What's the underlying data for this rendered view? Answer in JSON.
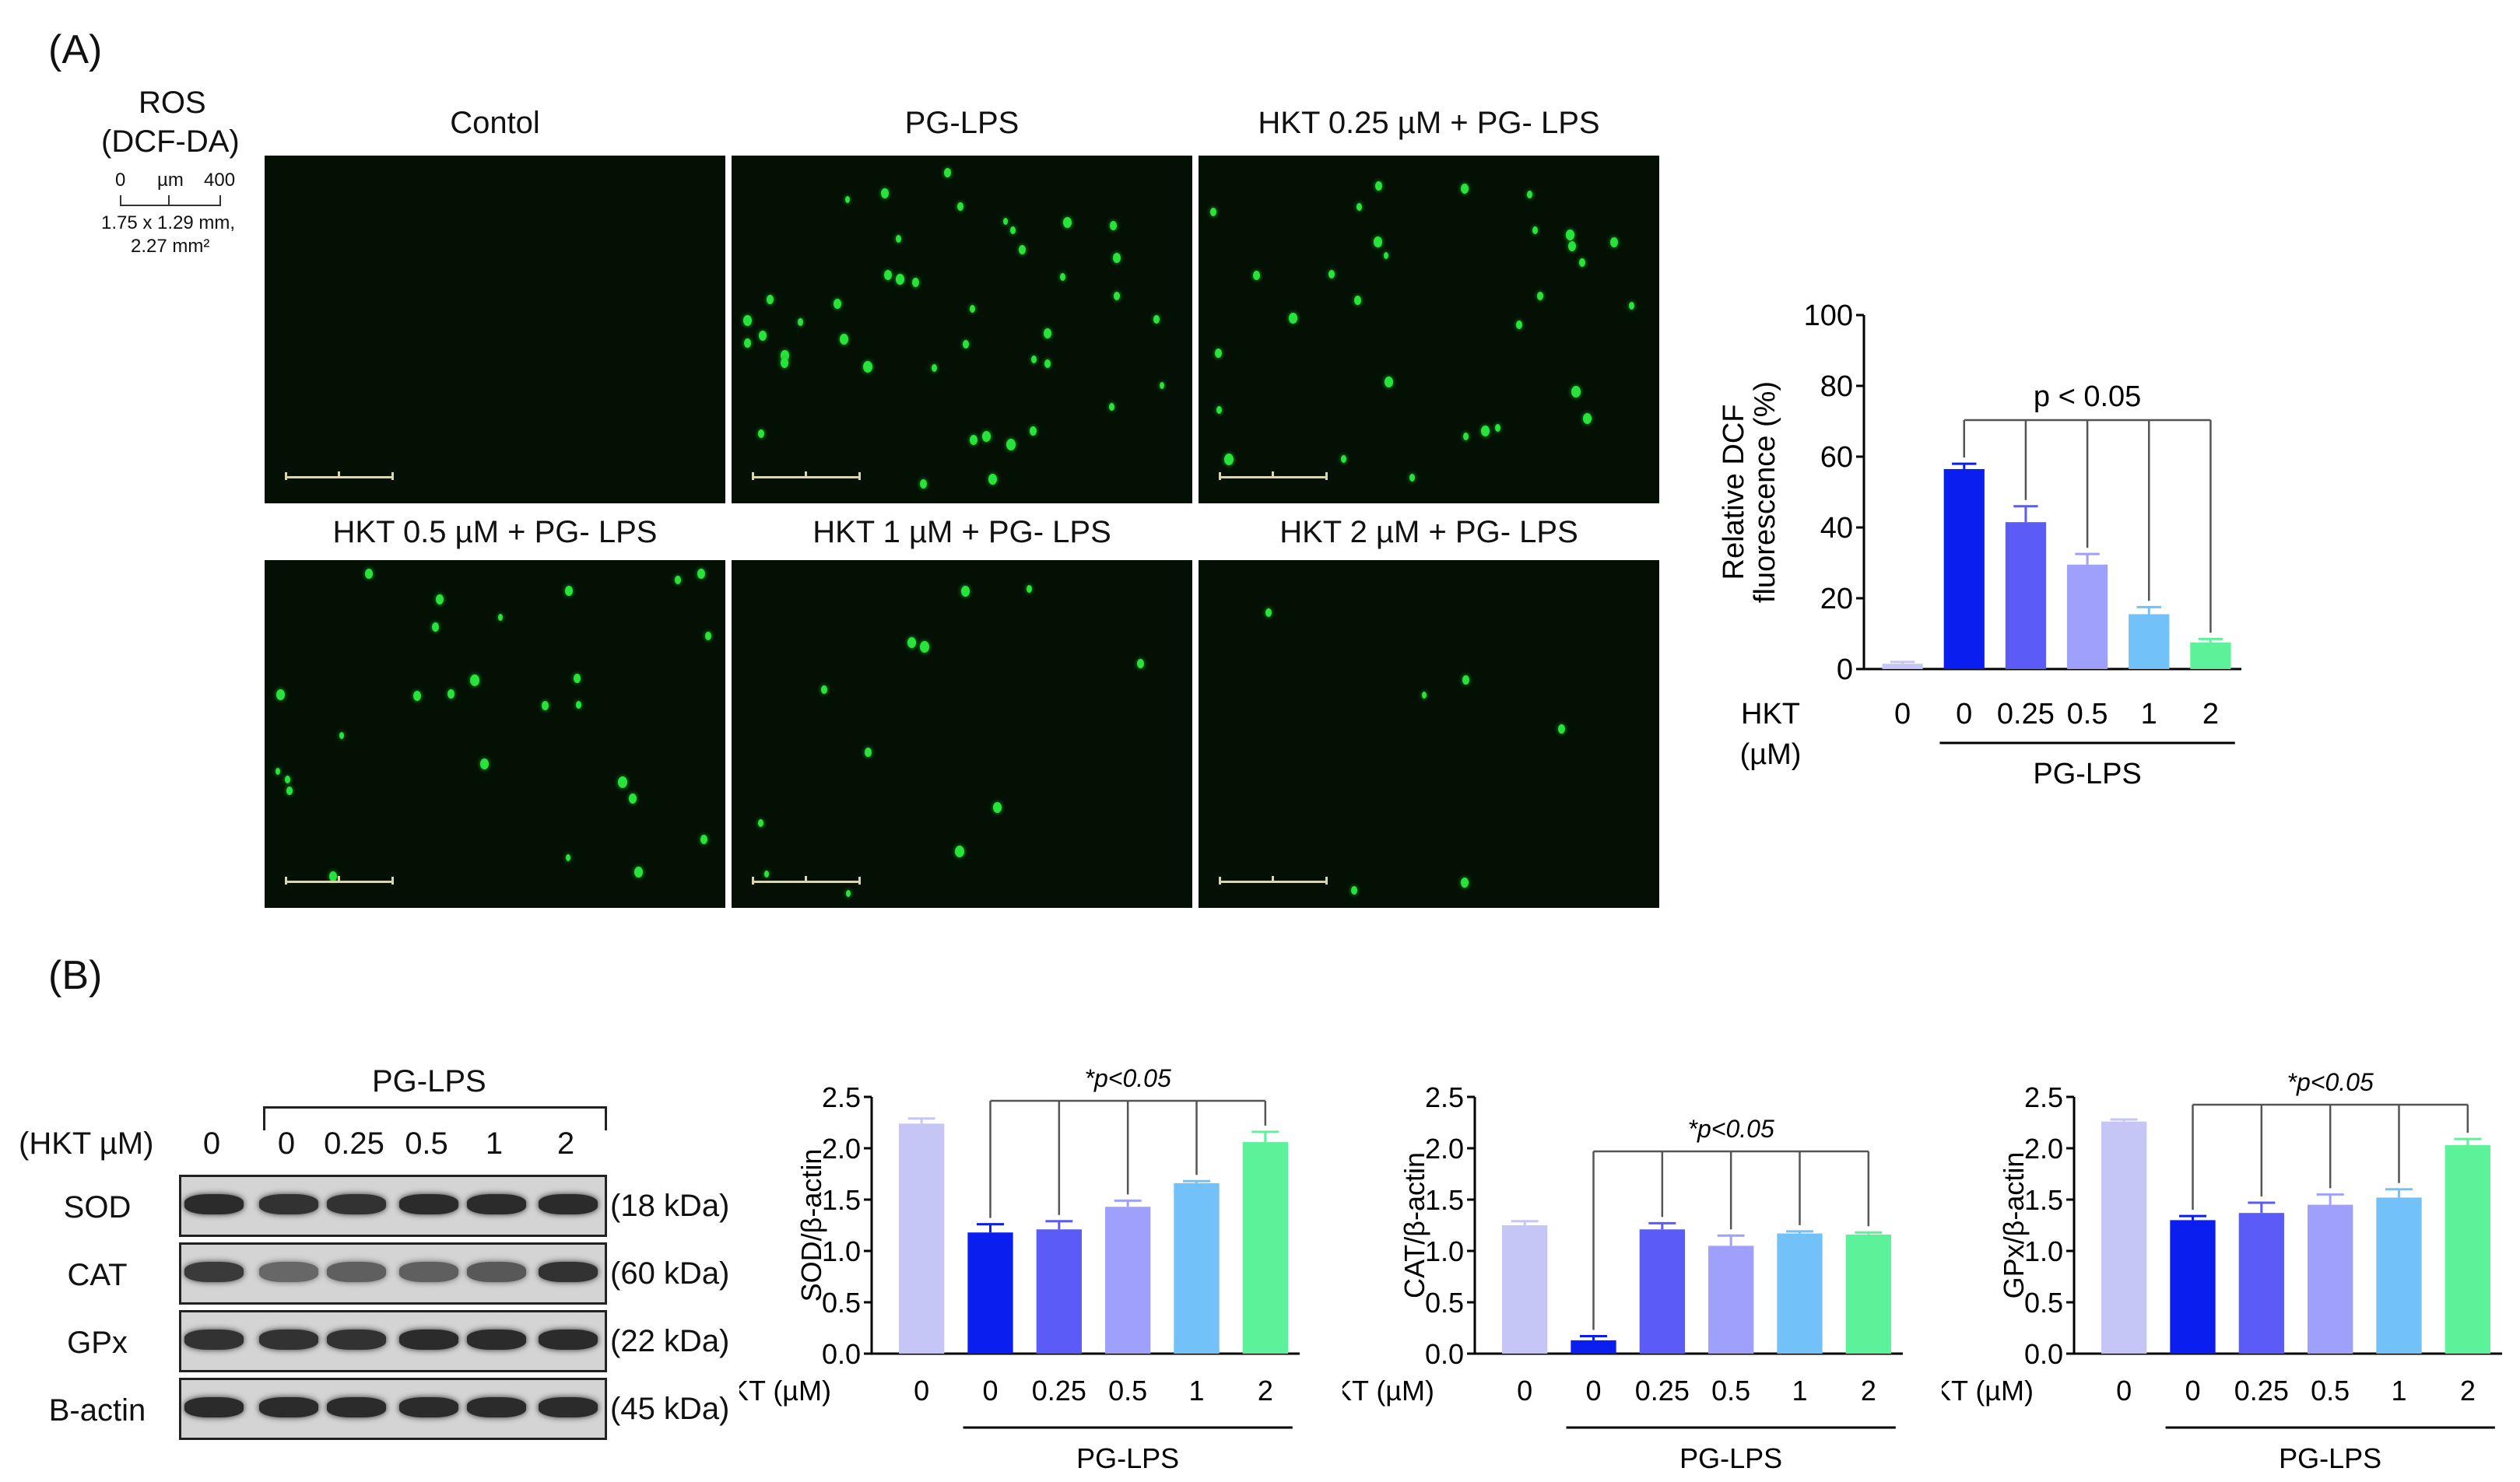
{
  "panelA": {
    "letter": "(A)",
    "ros_label": "ROS",
    "dye_label": "(DCF-DA)",
    "scale": {
      "zero": "0",
      "unit": "µm",
      "max": "400",
      "dims": "1.75 x 1.29 mm,",
      "area": "2.27 mm²"
    },
    "images": [
      {
        "caption": "Contol",
        "cells": 0
      },
      {
        "caption": "PG-LPS",
        "cells": 42
      },
      {
        "caption": "HKT 0.25 µM + PG- LPS",
        "cells": 30
      },
      {
        "caption": "HKT 0.5 µM + PG- LPS",
        "cells": 26
      },
      {
        "caption": "HKT 1 µM + PG- LPS",
        "cells": 12
      },
      {
        "caption": "HKT 2 µM + PG- LPS",
        "cells": 6
      }
    ]
  },
  "panelB": {
    "letter": "(B)",
    "blot": {
      "group_label": "PG-LPS",
      "hkt_label": "(HKT µM)",
      "lanes": [
        "0",
        "0",
        "0.25",
        "0.5",
        "1",
        "2"
      ],
      "rows": [
        {
          "name": "SOD",
          "size": "(18 kDa)",
          "intensity": [
            0.85,
            0.8,
            0.8,
            0.85,
            0.85,
            0.85
          ]
        },
        {
          "name": "CAT",
          "size": "(60 kDa)",
          "intensity": [
            0.75,
            0.45,
            0.5,
            0.5,
            0.55,
            0.8
          ]
        },
        {
          "name": "GPx",
          "size": "(22 kDa)",
          "intensity": [
            0.8,
            0.8,
            0.8,
            0.85,
            0.85,
            0.85
          ]
        },
        {
          "name": "B-actin",
          "size": "(45 kDa)",
          "intensity": [
            0.85,
            0.85,
            0.85,
            0.85,
            0.85,
            0.85
          ]
        }
      ]
    }
  },
  "chart_data": [
    {
      "type": "bar",
      "xprefix": "HKT",
      "xprefix2": "(µM)",
      "categories": [
        "0",
        "0",
        "0.25",
        "0.5",
        "1",
        "2"
      ],
      "values": [
        1.5,
        56.5,
        41.5,
        29.5,
        15.5,
        7.5
      ],
      "errors": [
        0.5,
        1.5,
        4.5,
        3.0,
        2.0,
        1.0
      ],
      "ylabel_line1": "Relative DCF",
      "ylabel_line2": "fluorescence (%)",
      "ylim": [
        0,
        100
      ],
      "yticks": [
        "0",
        "20",
        "40",
        "60",
        "80",
        "100"
      ],
      "group_label": "PG-LPS",
      "annotation": "p < 0.05",
      "colors": [
        "#c6c6f6",
        "#0b1ef0",
        "#5b5bf7",
        "#9ea0fb",
        "#72c1f8",
        "#5cf29a"
      ]
    },
    {
      "type": "bar",
      "xprefix": "HKT (µM)",
      "categories": [
        "0",
        "0",
        "0.25",
        "0.5",
        "1",
        "2"
      ],
      "values": [
        2.24,
        1.18,
        1.21,
        1.43,
        1.66,
        2.06
      ],
      "errors": [
        0.05,
        0.08,
        0.08,
        0.06,
        0.02,
        0.1
      ],
      "ylabel": "SOD/β-actin",
      "ylim": [
        0,
        2.5
      ],
      "yticks": [
        "0.0",
        "0.5",
        "1.0",
        "1.5",
        "2.0",
        "2.5"
      ],
      "group_label": "PG-LPS",
      "annotation": "*p<0.05",
      "colors": [
        "#c6c6f6",
        "#0b1ef0",
        "#5b5bf7",
        "#9ea0fb",
        "#72c1f8",
        "#5cf29a"
      ]
    },
    {
      "type": "bar",
      "xprefix": "HKT (µM)",
      "categories": [
        "0",
        "0",
        "0.25",
        "0.5",
        "1",
        "2"
      ],
      "values": [
        1.25,
        0.13,
        1.21,
        1.05,
        1.17,
        1.16
      ],
      "errors": [
        0.04,
        0.04,
        0.06,
        0.1,
        0.02,
        0.02
      ],
      "ylabel": "CAT/β-actin",
      "ylim": [
        0,
        2.5
      ],
      "yticks": [
        "0.0",
        "0.5",
        "1.0",
        "1.5",
        "2.0",
        "2.5"
      ],
      "group_label": "PG-LPS",
      "annotation": "*p<0.05",
      "colors": [
        "#c6c6f6",
        "#0b1ef0",
        "#5b5bf7",
        "#9ea0fb",
        "#72c1f8",
        "#5cf29a"
      ]
    },
    {
      "type": "bar",
      "xprefix": "HKT (µM)",
      "categories": [
        "0",
        "0",
        "0.25",
        "0.5",
        "1",
        "2"
      ],
      "values": [
        2.26,
        1.3,
        1.37,
        1.45,
        1.52,
        2.03
      ],
      "errors": [
        0.02,
        0.04,
        0.1,
        0.1,
        0.08,
        0.06
      ],
      "ylabel": "GPx/β-actin",
      "ylim": [
        0,
        2.5
      ],
      "yticks": [
        "0.0",
        "0.5",
        "1.0",
        "1.5",
        "2.0",
        "2.5"
      ],
      "group_label": "PG-LPS",
      "annotation": "*p<0.05",
      "colors": [
        "#c6c6f6",
        "#0b1ef0",
        "#5b5bf7",
        "#9ea0fb",
        "#72c1f8",
        "#5cf29a"
      ]
    }
  ]
}
